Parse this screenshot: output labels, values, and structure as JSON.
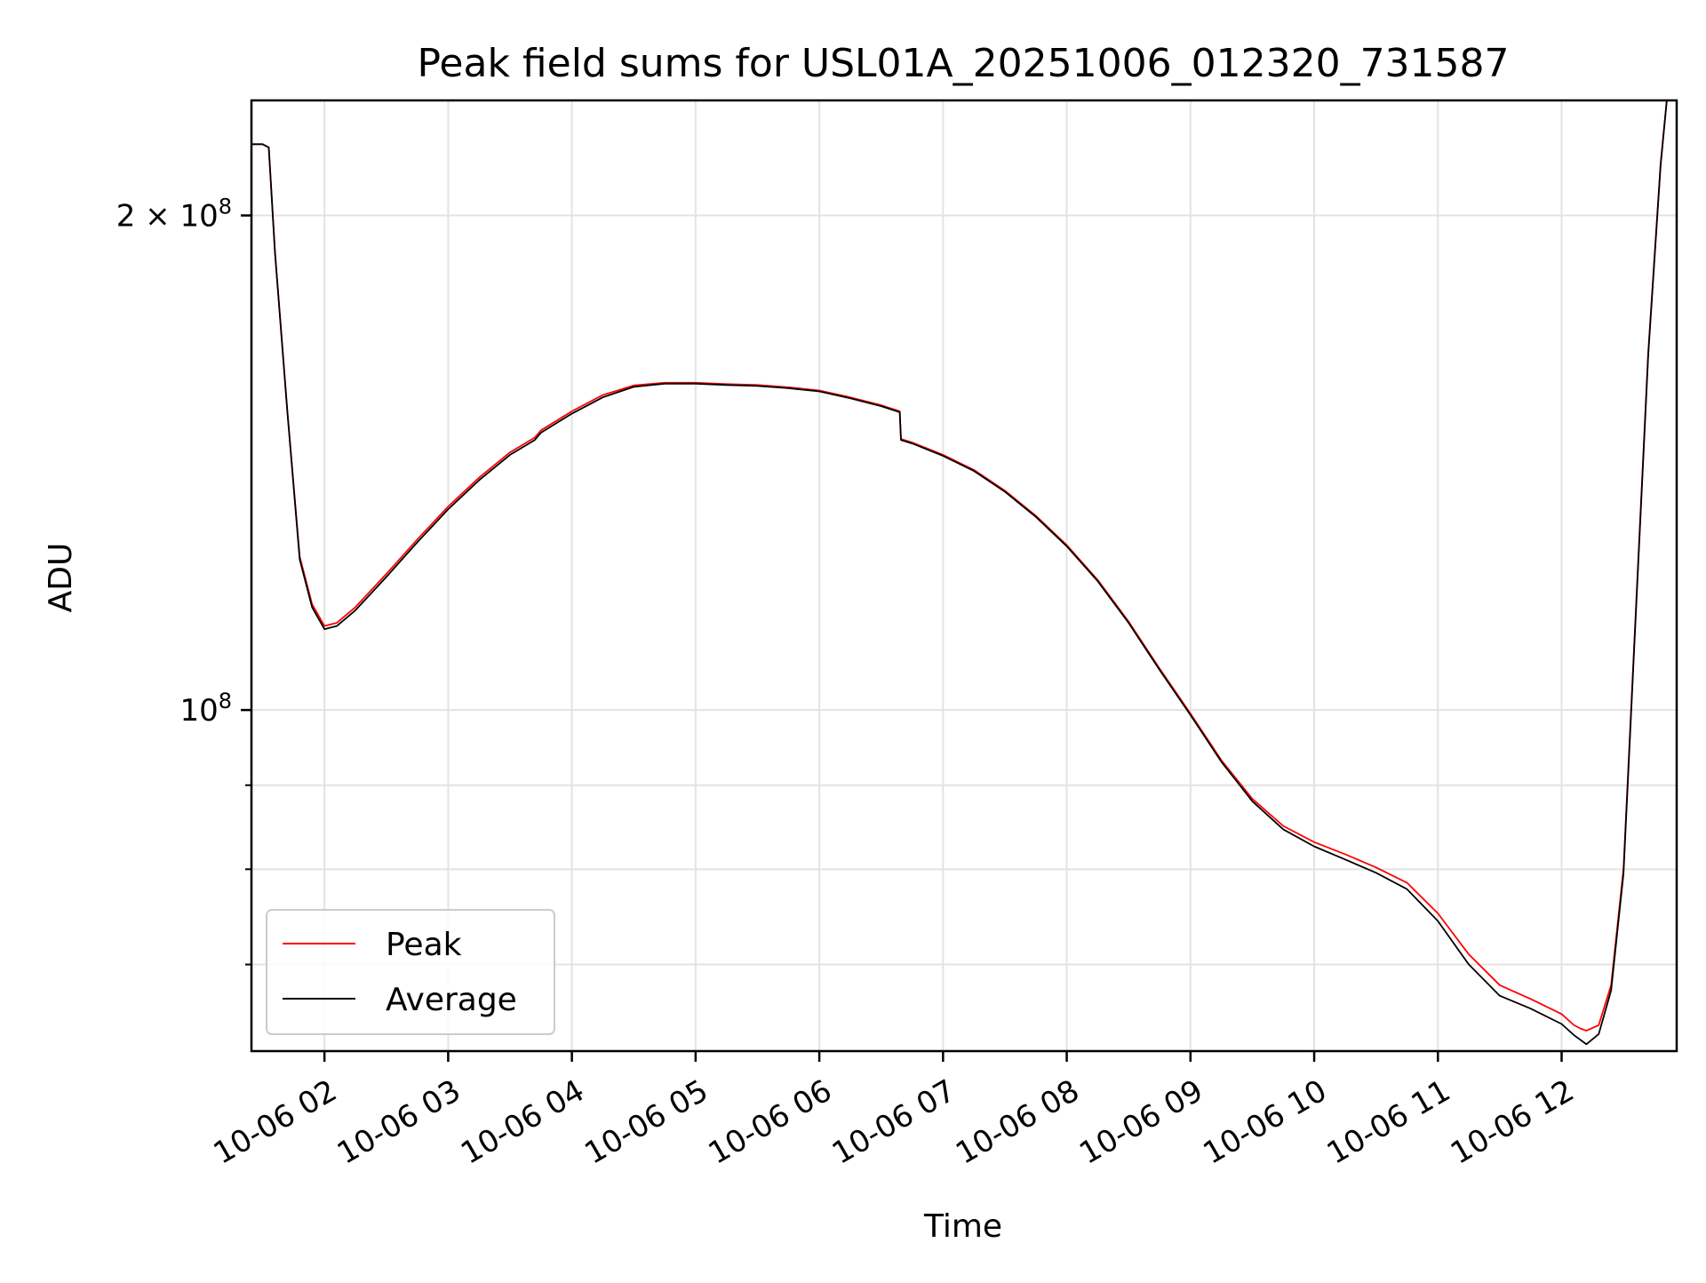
{
  "chart_data": {
    "type": "line",
    "title": "Peak field sums for USL01A_20251006_012320_731587",
    "xlabel": "Time",
    "ylabel": "ADU",
    "x_unit": "hours (2025-10-06)",
    "xlim": [
      1.41,
      12.93
    ],
    "ylim": [
      62000000,
      235000000
    ],
    "y_scale": "log",
    "grid": true,
    "legend_position": "lower-left",
    "x_ticks": [
      {
        "value": 2,
        "label": "10-06 02"
      },
      {
        "value": 3,
        "label": "10-06 03"
      },
      {
        "value": 4,
        "label": "10-06 04"
      },
      {
        "value": 5,
        "label": "10-06 05"
      },
      {
        "value": 6,
        "label": "10-06 06"
      },
      {
        "value": 7,
        "label": "10-06 07"
      },
      {
        "value": 8,
        "label": "10-06 08"
      },
      {
        "value": 9,
        "label": "10-06 09"
      },
      {
        "value": 10,
        "label": "10-06 10"
      },
      {
        "value": 11,
        "label": "10-06 11"
      },
      {
        "value": 12,
        "label": "10-06 12"
      }
    ],
    "y_major_ticks": [
      {
        "value": 100000000,
        "base": "10",
        "exp": "8",
        "mant": ""
      },
      {
        "value": 200000000,
        "base": "10",
        "exp": "8",
        "mant": "2 × "
      }
    ],
    "y_minor_ticks": [
      70000000,
      80000000,
      90000000,
      300000000
    ],
    "series": [
      {
        "name": "Peak",
        "color": "#ff0000",
        "x": [
          1.41,
          1.5,
          1.55,
          1.6,
          1.7,
          1.8,
          1.9,
          2.0,
          2.1,
          2.25,
          2.5,
          2.75,
          3.0,
          3.25,
          3.5,
          3.7,
          3.75,
          4.0,
          4.25,
          4.5,
          4.75,
          5.0,
          5.25,
          5.5,
          5.75,
          6.0,
          6.25,
          6.5,
          6.65,
          6.66,
          6.75,
          7.0,
          7.25,
          7.5,
          7.75,
          8.0,
          8.25,
          8.5,
          8.75,
          9.0,
          9.25,
          9.5,
          9.75,
          10.0,
          10.25,
          10.5,
          10.75,
          11.0,
          11.25,
          11.5,
          11.75,
          12.0,
          12.05,
          12.1,
          12.15,
          12.2,
          12.3,
          12.4,
          12.5,
          12.6,
          12.7,
          12.8,
          12.85,
          12.93
        ],
        "y": [
          221000000,
          221000000,
          220000000,
          190000000,
          152000000,
          124000000,
          116000000,
          112500000,
          113000000,
          115500000,
          121000000,
          127000000,
          133000000,
          138500000,
          143500000,
          146500000,
          148000000,
          152000000,
          155500000,
          157600000,
          158200000,
          158200000,
          157900000,
          157700000,
          157200000,
          156500000,
          155000000,
          153300000,
          152000000,
          146200000,
          145500000,
          143000000,
          140000000,
          136000000,
          131300000,
          126000000,
          120000000,
          113200000,
          106000000,
          99500000,
          93200000,
          88300000,
          85000000,
          83100000,
          81700000,
          80200000,
          78500000,
          75200000,
          71000000,
          68000000,
          66700000,
          65300000,
          64800000,
          64300000,
          64000000,
          63800000,
          64300000,
          68000000,
          80000000,
          115000000,
          165000000,
          215000000,
          235000000,
          235000000
        ]
      },
      {
        "name": "Average",
        "color": "#000000",
        "x": [
          1.41,
          1.5,
          1.55,
          1.6,
          1.7,
          1.8,
          1.9,
          2.0,
          2.1,
          2.25,
          2.5,
          2.75,
          3.0,
          3.25,
          3.5,
          3.7,
          3.75,
          4.0,
          4.25,
          4.5,
          4.75,
          5.0,
          5.25,
          5.5,
          5.75,
          6.0,
          6.25,
          6.5,
          6.65,
          6.66,
          6.75,
          7.0,
          7.25,
          7.5,
          7.75,
          8.0,
          8.25,
          8.5,
          8.75,
          9.0,
          9.25,
          9.5,
          9.75,
          10.0,
          10.25,
          10.5,
          10.75,
          11.0,
          11.25,
          11.5,
          11.75,
          12.0,
          12.05,
          12.1,
          12.15,
          12.2,
          12.3,
          12.4,
          12.5,
          12.6,
          12.7,
          12.8,
          12.85,
          12.93
        ],
        "y": [
          221000000,
          221000000,
          220000000,
          190000000,
          152000000,
          123500000,
          115500000,
          112000000,
          112500000,
          115000000,
          120500000,
          126500000,
          132500000,
          138000000,
          143000000,
          146000000,
          147500000,
          151500000,
          155000000,
          157300000,
          158000000,
          158000000,
          157700000,
          157500000,
          157000000,
          156300000,
          154800000,
          153100000,
          151800000,
          146000000,
          145300000,
          142800000,
          139800000,
          135800000,
          131100000,
          125800000,
          119800000,
          113000000,
          105800000,
          99300000,
          93000000,
          88000000,
          84600000,
          82600000,
          81100000,
          79600000,
          77800000,
          74400000,
          70000000,
          67000000,
          65800000,
          64400000,
          63900000,
          63400000,
          63000000,
          62600000,
          63500000,
          67500000,
          79500000,
          114500000,
          164500000,
          214500000,
          235000000,
          235000000
        ]
      }
    ]
  }
}
